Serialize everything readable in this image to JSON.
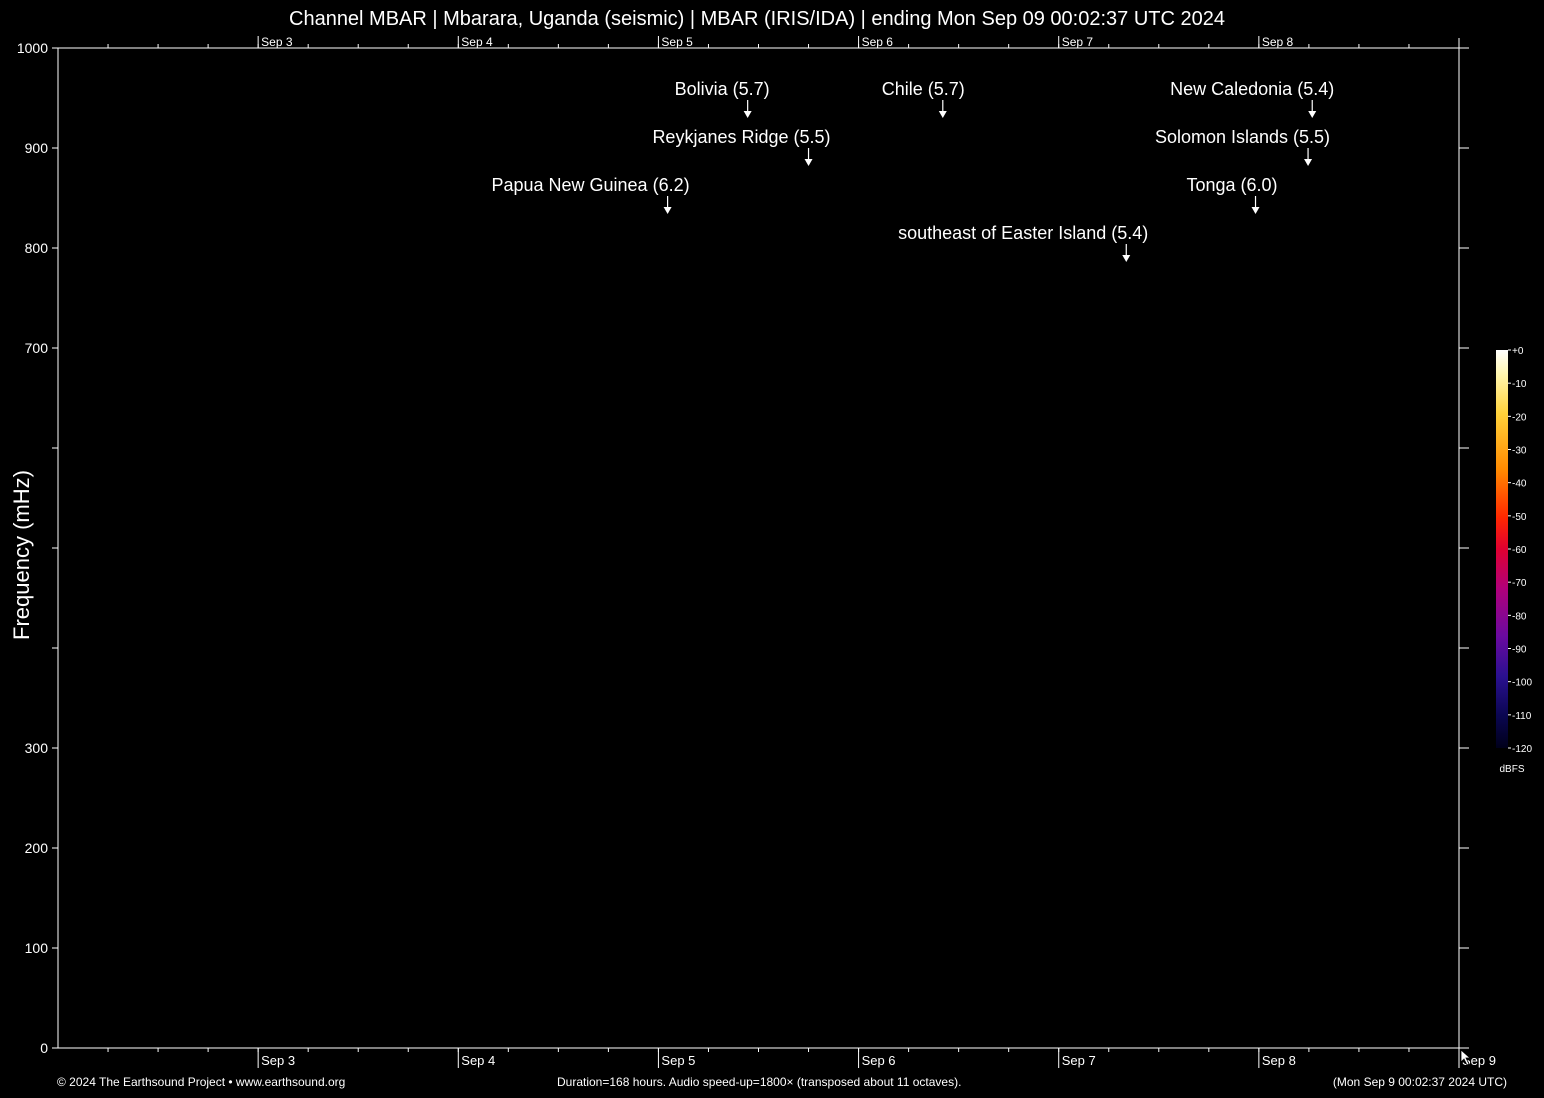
{
  "title": "Channel MBAR | Mbarara, Uganda (seismic) | MBAR (IRIS/IDA) | ending Mon Sep 09 00:02:37 UTC 2024",
  "footer": {
    "copyright": "© 2024 The Earthsound Project • www.earthsound.org",
    "duration": "Duration=168 hours. Audio speed-up=1800× (transposed about 11 octaves).",
    "timestamp": "(Mon Sep  9 00:02:37 2024 UTC)"
  },
  "colors": {
    "background": "#000000",
    "foreground": "#ffffff"
  },
  "chart_data": {
    "type": "spectrogram",
    "title": "Channel MBAR | Mbarara, Uganda (seismic) | MBAR (IRIS/IDA) | ending Mon Sep 09 00:02:37 UTC 2024",
    "ylabel": "Frequency (mHz)",
    "ylim": [
      0,
      1000
    ],
    "xlim_hours": [
      0,
      168
    ],
    "y_ticks": [
      {
        "value": 0,
        "label": "0"
      },
      {
        "value": 100,
        "label": "100"
      },
      {
        "value": 200,
        "label": "200"
      },
      {
        "value": 300,
        "label": "300"
      },
      {
        "value": 400,
        "label": ""
      },
      {
        "value": 500,
        "label": ""
      },
      {
        "value": 600,
        "label": ""
      },
      {
        "value": 700,
        "label": "700"
      },
      {
        "value": 800,
        "label": "800"
      },
      {
        "value": 900,
        "label": "900"
      },
      {
        "value": 1000,
        "label": "1000"
      }
    ],
    "day_ticks_top": [
      {
        "hour": 24,
        "label": "Sep  3"
      },
      {
        "hour": 48,
        "label": "Sep  4"
      },
      {
        "hour": 72,
        "label": "Sep  5"
      },
      {
        "hour": 96,
        "label": "Sep  6"
      },
      {
        "hour": 120,
        "label": "Sep  7"
      },
      {
        "hour": 144,
        "label": "Sep  8"
      }
    ],
    "day_ticks_bottom": [
      {
        "hour": 24,
        "label": "Sep  3"
      },
      {
        "hour": 48,
        "label": "Sep  4"
      },
      {
        "hour": 72,
        "label": "Sep  5"
      },
      {
        "hour": 96,
        "label": "Sep  6"
      },
      {
        "hour": 120,
        "label": "Sep  7"
      },
      {
        "hour": 144,
        "label": "Sep  8"
      },
      {
        "hour": 168,
        "label": "Sep  9"
      }
    ],
    "minor_tick_hours": 6,
    "events": [
      {
        "label": "Bolivia (5.7)",
        "hour": 82.7,
        "level": 950
      },
      {
        "label": "Chile (5.7)",
        "hour": 106.1,
        "level": 950
      },
      {
        "label": "New Caledonia (5.4)",
        "hour": 150.4,
        "level": 950
      },
      {
        "label": "Reykjanes Ridge (5.5)",
        "hour": 90.0,
        "level": 902
      },
      {
        "label": "Solomon Islands (5.5)",
        "hour": 149.9,
        "level": 902
      },
      {
        "label": "Papua New Guinea (6.2)",
        "hour": 73.1,
        "level": 854
      },
      {
        "label": "Tonga (6.0)",
        "hour": 143.6,
        "level": 854
      },
      {
        "label": "southeast of Easter Island (5.4)",
        "hour": 128.1,
        "level": 806
      }
    ],
    "colorbar": {
      "unit": "dBFS",
      "ticks": [
        {
          "value": 0,
          "label": "+0"
        },
        {
          "value": -10,
          "label": "-10"
        },
        {
          "value": -20,
          "label": "-20"
        },
        {
          "value": -30,
          "label": "-30"
        },
        {
          "value": -40,
          "label": "-40"
        },
        {
          "value": -50,
          "label": "-50"
        },
        {
          "value": -60,
          "label": "-60"
        },
        {
          "value": -70,
          "label": "-70"
        },
        {
          "value": -80,
          "label": "-80"
        },
        {
          "value": -90,
          "label": "-90"
        },
        {
          "value": -100,
          "label": "-100"
        },
        {
          "value": -110,
          "label": "-110"
        },
        {
          "value": -120,
          "label": "-120"
        }
      ],
      "range": [
        -120,
        0
      ]
    }
  }
}
